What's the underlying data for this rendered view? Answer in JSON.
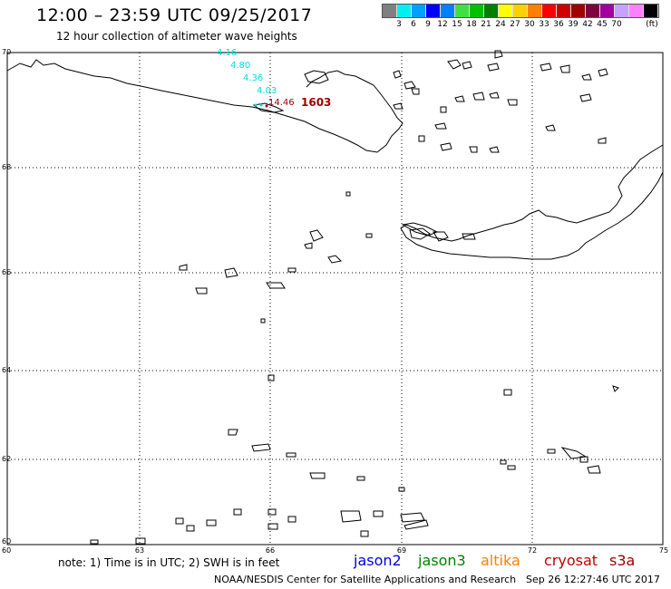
{
  "header": {
    "title": "12:00 – 23:59 UTC 09/25/2017",
    "subtitle": "12 hour collection of altimeter wave heights"
  },
  "colorbar": {
    "colors": [
      "#808080",
      "#00f0f0",
      "#00a0ff",
      "#0000ff",
      "#0080ff",
      "#40e040",
      "#00c000",
      "#008000",
      "#ffff00",
      "#ffd000",
      "#ff8000",
      "#ff0000",
      "#d00000",
      "#a00000",
      "#800040",
      "#a000a0",
      "#c8a0ff",
      "#ff80ff",
      "#000000"
    ],
    "labels": [
      "3",
      "6",
      "9",
      "12",
      "15",
      "18",
      "21",
      "24",
      "27",
      "30",
      "33",
      "36",
      "39",
      "42",
      "45",
      "70"
    ],
    "unit": "(ft)"
  },
  "map": {
    "lat_labels": [
      "70",
      "68",
      "66",
      "64",
      "62",
      "60"
    ],
    "lon_labels": [
      "60",
      "63",
      "66",
      "69",
      "72",
      "75"
    ],
    "swh_labels": [
      {
        "text": "4.16",
        "color": "#00e0e0"
      },
      {
        "text": "4.80",
        "color": "#00e0e0"
      },
      {
        "text": "4.36",
        "color": "#00e0e0"
      },
      {
        "text": "4.03",
        "color": "#00e0e0"
      },
      {
        "text": "14.46",
        "color": "#a00000"
      }
    ],
    "track_time": {
      "text": "1603",
      "color": "#a00000"
    }
  },
  "legend": {
    "note": "note: 1) Time is in UTC; 2) SWH is in feet",
    "satellites": [
      {
        "name": "jason2",
        "color": "#0000e0"
      },
      {
        "name": "jason3",
        "color": "#008000"
      },
      {
        "name": "altika",
        "color": "#ff8000"
      },
      {
        "name": "cryosat",
        "color": "#c00000"
      },
      {
        "name": "s3a",
        "color": "#a00000"
      }
    ]
  },
  "footer": {
    "credit": "NOAA/NESDIS Center for Satellite Applications and Research",
    "timestamp": "Sep 26 12:27:46 UTC 2017"
  }
}
